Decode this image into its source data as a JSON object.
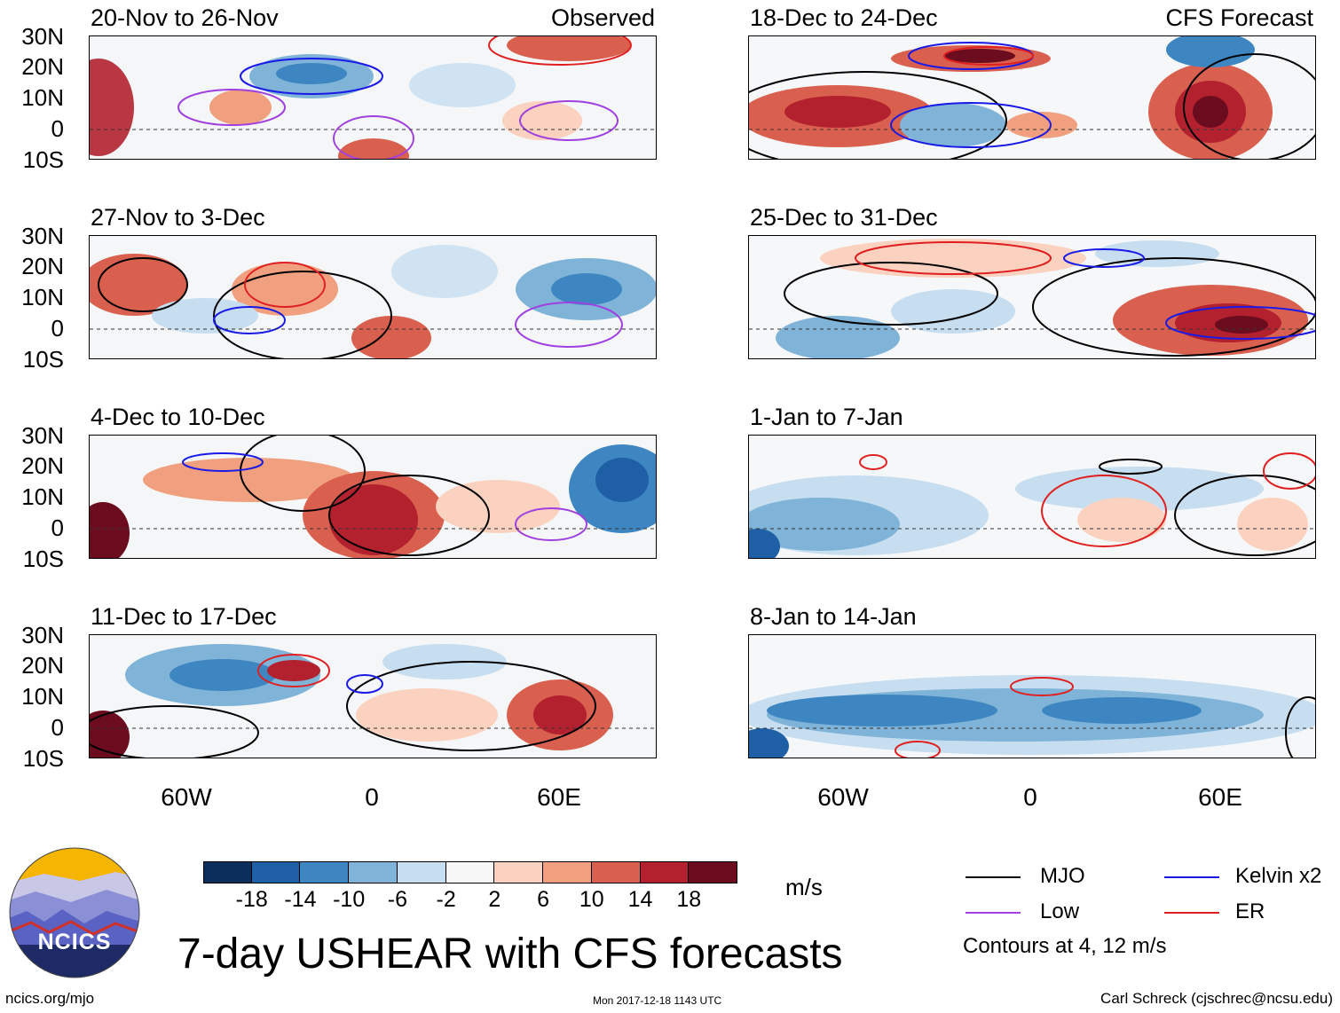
{
  "header": {
    "left_label": "Observed",
    "right_label": "CFS Forecast"
  },
  "observed_panels": [
    {
      "title": "20-Nov to 26-Nov"
    },
    {
      "title": "27-Nov to 3-Dec"
    },
    {
      "title": "4-Dec to 10-Dec"
    },
    {
      "title": "11-Dec to 17-Dec"
    }
  ],
  "forecast_panels": [
    {
      "title": "18-Dec to 24-Dec"
    },
    {
      "title": "25-Dec to 31-Dec"
    },
    {
      "title": "1-Jan to 7-Jan"
    },
    {
      "title": "8-Jan to 14-Jan"
    }
  ],
  "lat_labels": [
    "30N",
    "20N",
    "10N",
    "0",
    "10S"
  ],
  "lon_labels": [
    "60W",
    "0",
    "60E"
  ],
  "colorbar": {
    "unit": "m/s",
    "tick_labels": [
      "-18",
      "-14",
      "-10",
      "-6",
      "-2",
      "2",
      "6",
      "10",
      "14",
      "18"
    ],
    "colors": [
      "#0b2e5c",
      "#1f5fa6",
      "#3e86c1",
      "#7fb4d8",
      "#c6def0",
      "#f7f7f7",
      "#fbd2bf",
      "#f0a07e",
      "#d9604e",
      "#b3212f",
      "#6b0d1e"
    ]
  },
  "legend": {
    "mjo": "MJO",
    "kelvin": "Kelvin x2",
    "low": "Low",
    "er": "ER",
    "note": "Contours at 4, 12 m/s",
    "colors": {
      "mjo": "#000000",
      "kelvin": "#1a1ae6",
      "low": "#a040e0",
      "er": "#e02020"
    }
  },
  "logo": {
    "text": "NCICS"
  },
  "main_title": "7-day USHEAR with CFS forecasts",
  "footer": {
    "url": "ncics.org/mjo",
    "timestamp": "Mon 2017-12-18 1143 UTC",
    "author": "Carl Schreck (cjschrec@ncsu.edu)"
  }
}
